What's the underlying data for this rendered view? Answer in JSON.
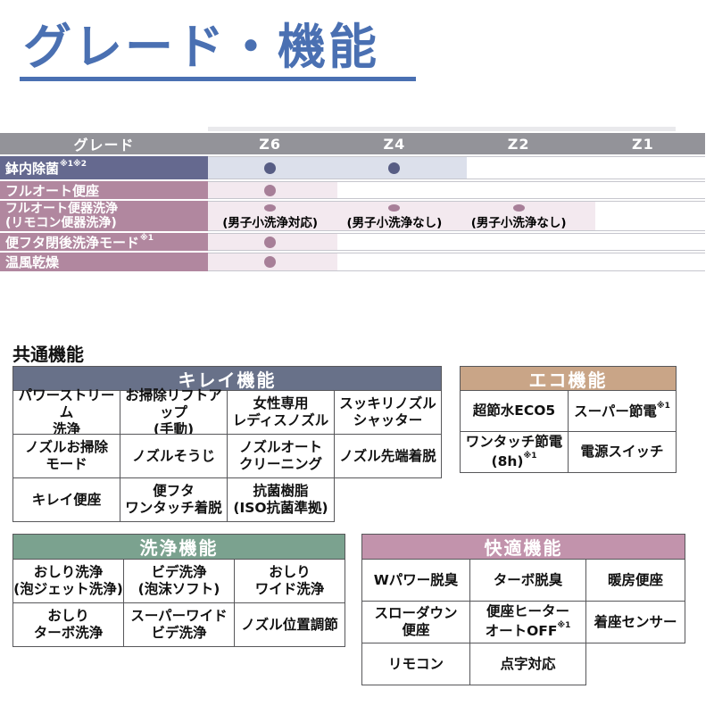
{
  "page": {
    "title": "グレード・機能",
    "common_heading": "共通機能"
  },
  "colors": {
    "title_blue": "#4a70b2",
    "grade_header_gray": "#939399",
    "grade_row_blue_label": "#65698f",
    "grade_row_blue_band": "#dce0eb",
    "grade_row_blue_dot": "#575d84",
    "grade_row_pink_label": "#b1879f",
    "grade_row_pink_band": "#f3e9ef",
    "grade_row_pink_dot": "#a77f98",
    "kirei_header": "#687189",
    "eco_header": "#c9a587",
    "wash_header": "#7ba28f",
    "comfort_header": "#c293ac"
  },
  "grade_table": {
    "corner_label": "グレード",
    "columns": [
      "Z6",
      "Z4",
      "Z2",
      "Z1"
    ],
    "rows": [
      {
        "label": "鉢内除菌",
        "sup": "※1※2",
        "dots": [
          "Z6",
          "Z4"
        ]
      },
      {
        "label": "フルオート便座",
        "dots": [
          "Z6"
        ]
      },
      {
        "label": "フルオート便器洗浄",
        "label2": "(リモコン便器洗浄)",
        "dots": [
          "Z6",
          "Z4",
          "Z2"
        ],
        "notes": [
          "(男子小洗浄対応)",
          "(男子小洗浄なし)",
          "(男子小洗浄なし)"
        ]
      },
      {
        "label": "便フタ閉後洗浄モード",
        "sup": "※1",
        "dots": [
          "Z6"
        ]
      },
      {
        "label": "温風乾燥",
        "dots": [
          "Z6"
        ]
      }
    ]
  },
  "tables": {
    "kirei": {
      "title": "キレイ機能",
      "rows": [
        [
          {
            "t": "パワーストリーム\n洗浄"
          },
          {
            "t": "お掃除リフトアップ\n(手動)"
          },
          {
            "t": "女性専用\nレディスノズル"
          },
          {
            "t": "スッキリノズル\nシャッター"
          }
        ],
        [
          {
            "t": "ノズルお掃除\nモード"
          },
          {
            "t": "ノズルそうじ"
          },
          {
            "t": "ノズルオート\nクリーニング"
          },
          {
            "t": "ノズル先端着脱"
          }
        ],
        [
          {
            "t": "キレイ便座"
          },
          {
            "t": "便フタ\nワンタッチ着脱"
          },
          {
            "t": "抗菌樹脂\n(ISO抗菌準拠)"
          }
        ]
      ]
    },
    "eco": {
      "title": "エコ機能",
      "rows": [
        [
          {
            "t": "超節水ECO5"
          },
          {
            "t": "スーパー節電",
            "s": "※1"
          }
        ],
        [
          {
            "t": "ワンタッチ節電\n(8h)",
            "s": "※1"
          },
          {
            "t": "電源スイッチ"
          }
        ]
      ]
    },
    "wash": {
      "title": "洗浄機能",
      "rows": [
        [
          {
            "t": "おしり洗浄\n(泡ジェット洗浄)"
          },
          {
            "t": "ビデ洗浄\n(泡沫ソフト)"
          },
          {
            "t": "おしり\nワイド洗浄"
          }
        ],
        [
          {
            "t": "おしり\nターボ洗浄"
          },
          {
            "t": "スーパーワイド\nビデ洗浄"
          },
          {
            "t": "ノズル位置調節"
          }
        ]
      ]
    },
    "comfort": {
      "title": "快適機能",
      "rows": [
        [
          {
            "t": "Wパワー脱臭"
          },
          {
            "t": "ターボ脱臭"
          },
          {
            "t": "暖房便座"
          }
        ],
        [
          {
            "t": "スローダウン\n便座"
          },
          {
            "t": "便座ヒーター\nオートOFF",
            "s": "※1"
          },
          {
            "t": "着座センサー"
          }
        ],
        [
          {
            "t": "リモコン"
          },
          {
            "t": "点字対応"
          }
        ]
      ]
    }
  }
}
